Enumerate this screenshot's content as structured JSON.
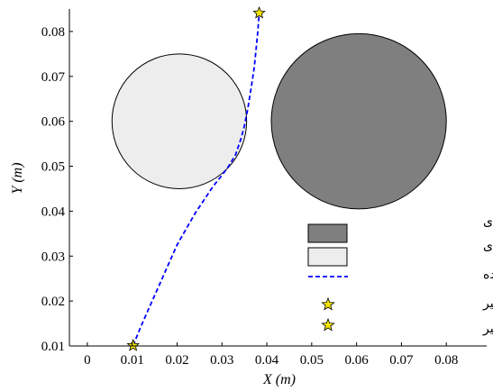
{
  "chart_data": {
    "type": "scatter",
    "xlabel": "X (m)",
    "ylabel": "Y (m)",
    "xlim": [
      -0.004,
      0.089
    ],
    "ylim": [
      0.01,
      0.085
    ],
    "xticks": [
      "0",
      "0.01",
      "0.02",
      "0.03",
      "0.04",
      "0.05",
      "0.06",
      "0.07",
      "0.08"
    ],
    "yticks": [
      "0.01",
      "0.02",
      "0.03",
      "0.04",
      "0.05",
      "0.06",
      "0.07",
      "0.08"
    ],
    "obstacles": [
      {
        "name": "مانع دایره‌ای",
        "cx": 0.0205,
        "cy": 0.06,
        "r": 0.015,
        "color": "#ededed"
      },
      {
        "name": "مانع دایره‌ای",
        "cx": 0.0605,
        "cy": 0.06,
        "r": 0.0195,
        "color": "#7f7f7f"
      }
    ],
    "series": [
      {
        "name": "مسیر تولید شده",
        "style": "dashed",
        "color": "#0000ff",
        "x": [
          0.0102,
          0.012,
          0.014,
          0.016,
          0.018,
          0.02,
          0.022,
          0.024,
          0.026,
          0.028,
          0.03,
          0.0315,
          0.033,
          0.0342,
          0.035,
          0.0358,
          0.0366,
          0.0372,
          0.0376,
          0.0379,
          0.0381,
          0.0383
        ],
        "y": [
          0.0101,
          0.0145,
          0.019,
          0.0235,
          0.028,
          0.0325,
          0.036,
          0.0395,
          0.0425,
          0.0455,
          0.048,
          0.05,
          0.0525,
          0.056,
          0.059,
          0.063,
          0.068,
          0.072,
          0.076,
          0.079,
          0.0815,
          0.084
        ]
      }
    ],
    "markers": [
      {
        "name": "نقطه ابتدایی مسیر",
        "x": 0.0102,
        "y": 0.0101,
        "symbol": "star",
        "color": "#f5e400"
      },
      {
        "name": "نقطه انتهایی مسیر",
        "x": 0.0383,
        "y": 0.0841,
        "symbol": "star",
        "color": "#f5e400"
      }
    ],
    "legend": {
      "placement": "bottom-right",
      "entries": [
        {
          "label": "مانع دایره‌ای",
          "kind": "patch",
          "color": "#7f7f7f"
        },
        {
          "label": "مانع دایره‌ای",
          "kind": "patch",
          "color": "#ededed"
        },
        {
          "label": "مسیر تولید شده",
          "kind": "dashed-line",
          "color": "#0000ff"
        },
        {
          "label": "نقطه ابتدایی مسیر",
          "kind": "star",
          "color": "#f5e400"
        },
        {
          "label": "نقطه انتهایی مسیر",
          "kind": "star",
          "color": "#f5e400"
        }
      ]
    }
  }
}
